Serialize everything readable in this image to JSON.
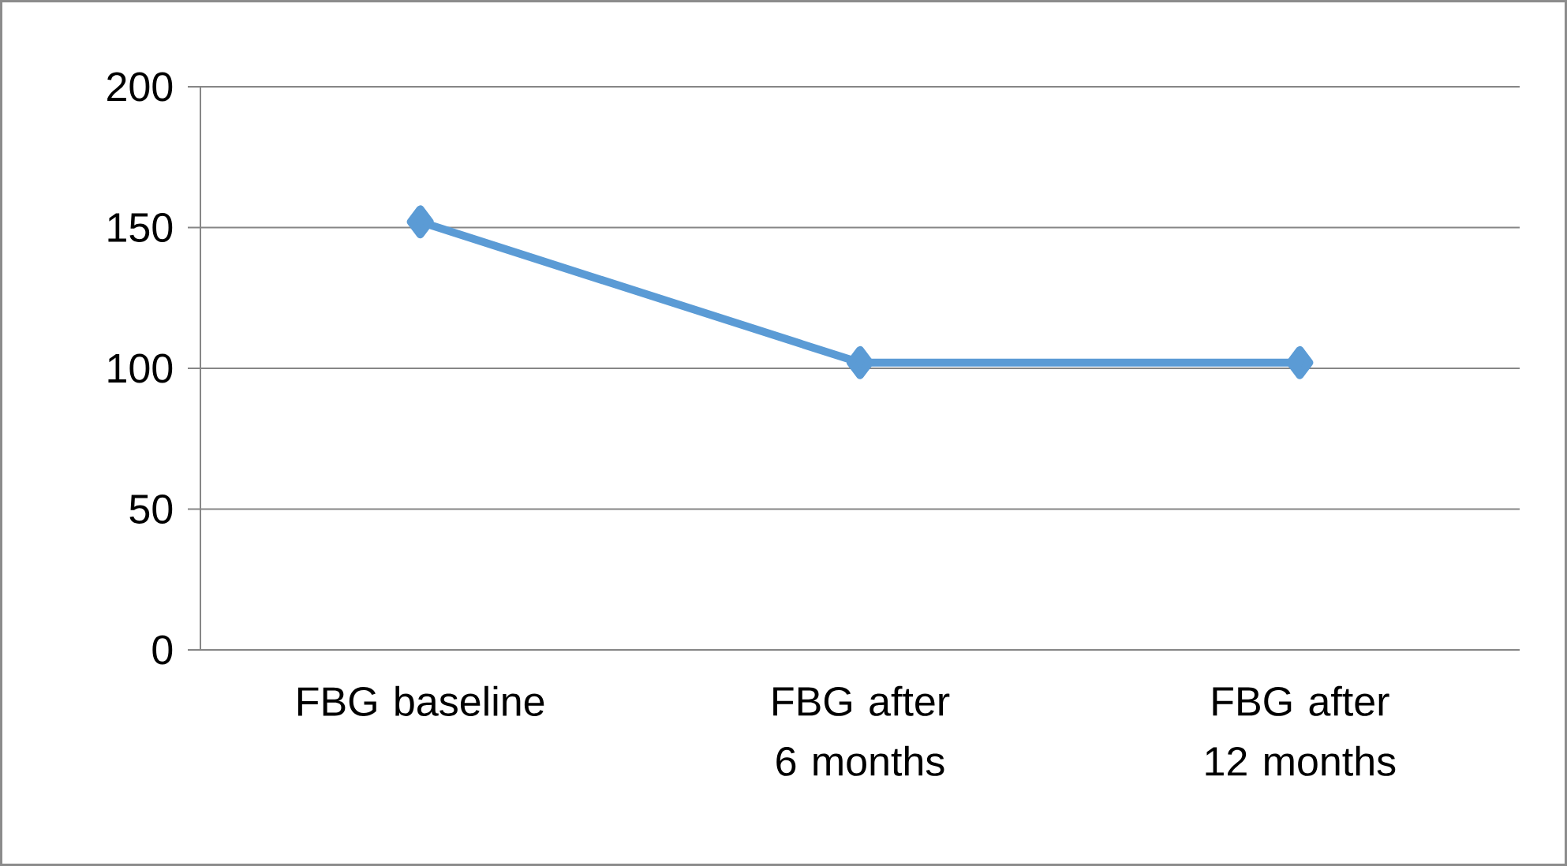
{
  "chart_data": {
    "type": "line",
    "categories": [
      "FBG baseline",
      "FBG after 6 months",
      "FBG after 12 months"
    ],
    "values": [
      152,
      102,
      102
    ],
    "color": "#5b9bd5",
    "marker": "diamond",
    "line_style": "solid",
    "ylim": [
      0,
      200
    ],
    "yticks": [
      0,
      50,
      100,
      150,
      200
    ],
    "grid": "y"
  }
}
